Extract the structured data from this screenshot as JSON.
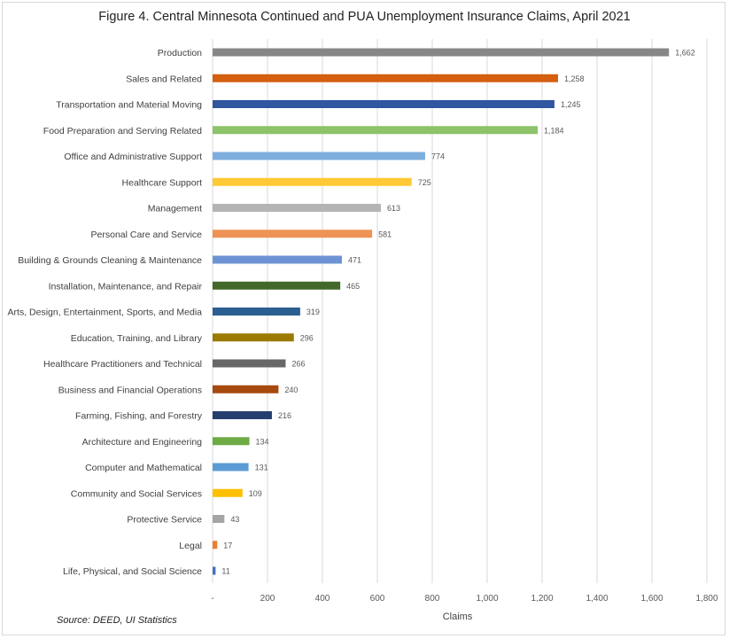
{
  "chart_data": {
    "type": "bar",
    "orientation": "horizontal",
    "title": "Figure 4. Central Minnesota Continued and PUA Unemployment Insurance Claims, April 2021",
    "xlabel": "Claims",
    "ylabel": "",
    "xlim": [
      0,
      1800
    ],
    "xticks": [
      0,
      200,
      400,
      600,
      800,
      1000,
      1200,
      1400,
      1600,
      1800
    ],
    "xtick_labels": [
      "-",
      "200",
      "400",
      "600",
      "800",
      "1,000",
      "1,200",
      "1,400",
      "1,600",
      "1,800"
    ],
    "grid": true,
    "legend": "none",
    "categories": [
      "Production",
      "Sales and Related",
      "Transportation and Material Moving",
      "Food Preparation and Serving Related",
      "Office and Administrative Support",
      "Healthcare Support",
      "Management",
      "Personal Care and Service",
      "Building & Grounds Cleaning & Maintenance",
      "Installation, Maintenance, and Repair",
      "Arts, Design, Entertainment, Sports, and Media",
      "Education, Training, and Library",
      "Healthcare Practitioners and Technical",
      "Business and Financial Operations",
      "Farming, Fishing, and Forestry",
      "Architecture and Engineering",
      "Computer and Mathematical",
      "Community and Social Services",
      "Protective Service",
      "Legal",
      "Life, Physical, and Social Science"
    ],
    "values": [
      1662,
      1258,
      1245,
      1184,
      774,
      725,
      613,
      581,
      471,
      465,
      319,
      296,
      266,
      240,
      216,
      134,
      131,
      109,
      43,
      17,
      11
    ],
    "data_labels": [
      "1,662",
      "1,258",
      "1,245",
      "1,184",
      "774",
      "725",
      "613",
      "581",
      "471",
      "465",
      "319",
      "296",
      "266",
      "240",
      "216",
      "134",
      "131",
      "109",
      "43",
      "17",
      "11"
    ],
    "colors": [
      "#878787",
      "#D35F0F",
      "#2F569F",
      "#8DC36A",
      "#7DAEDE",
      "#FFC935",
      "#B4B4B4",
      "#EE9355",
      "#6E93D4",
      "#42682A",
      "#2B5E91",
      "#9B7A00",
      "#676767",
      "#A64A0E",
      "#253F6E",
      "#6EAB45",
      "#5A9BD5",
      "#FFC000",
      "#A5A5A5",
      "#ED7D31",
      "#4472C4"
    ],
    "source": "Source: DEED, UI Statistics"
  }
}
